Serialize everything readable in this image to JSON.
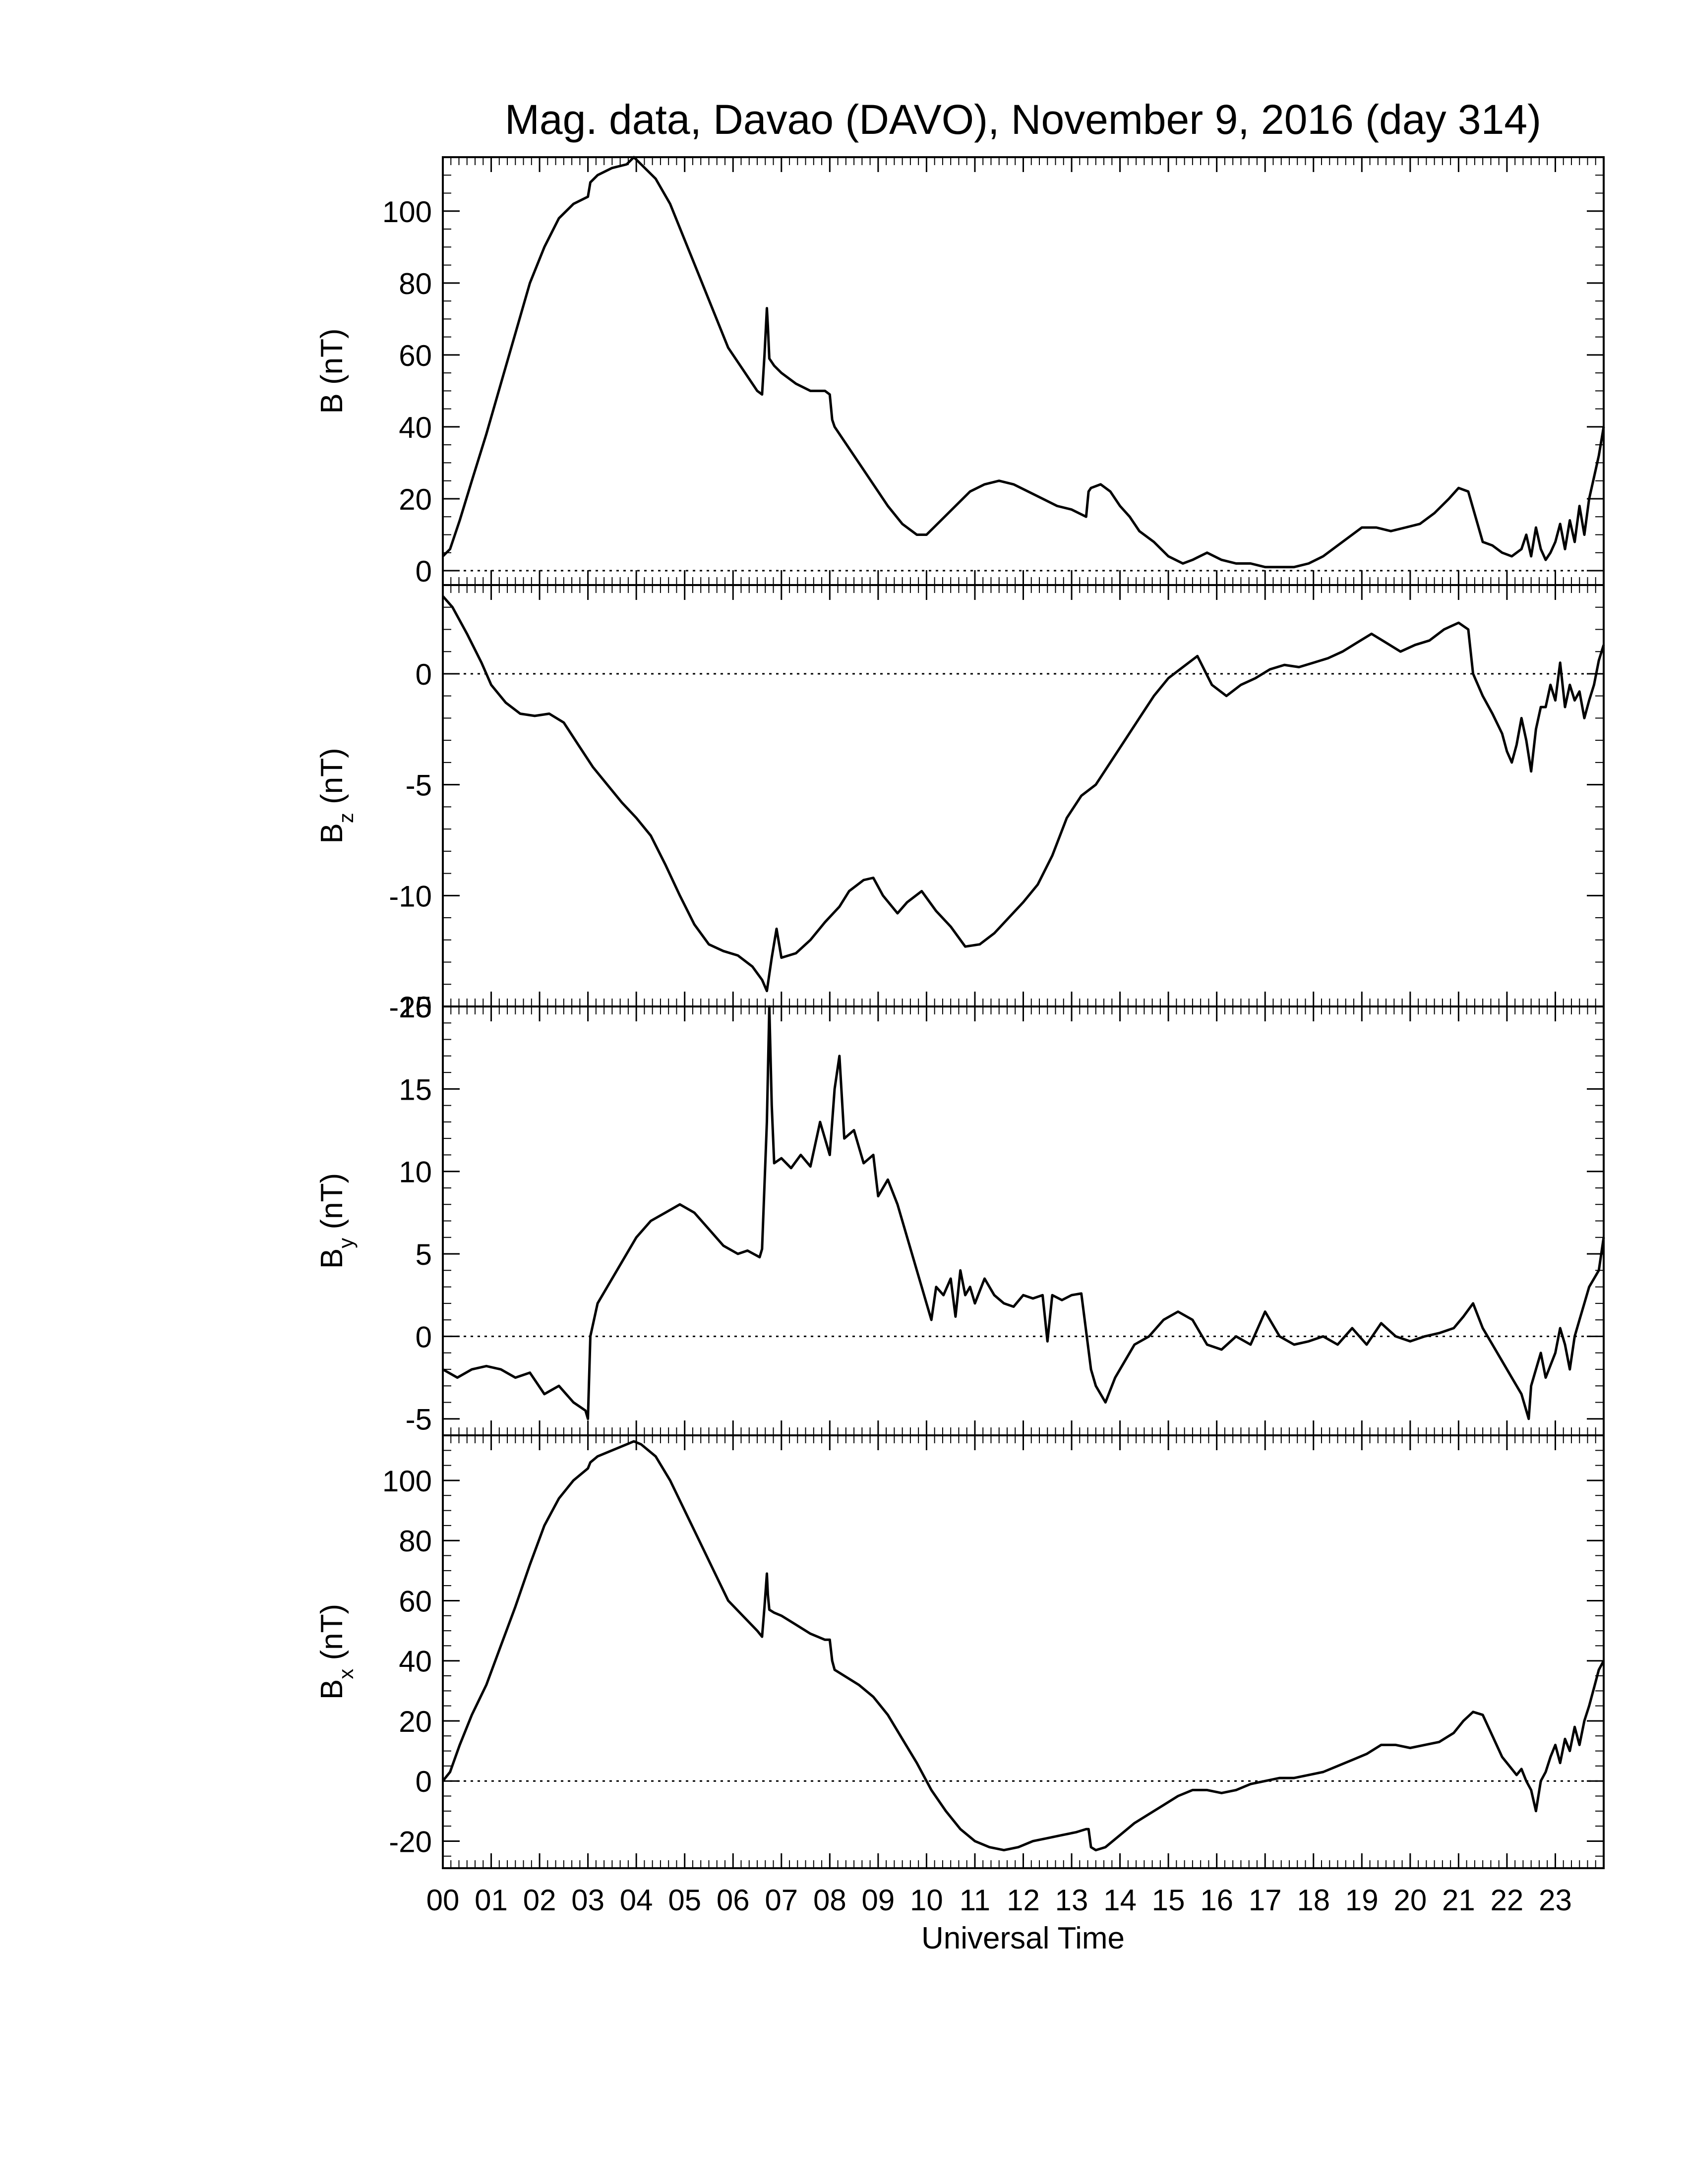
{
  "title": "Mag. data, Davao (DAVO), November 9, 2016 (day 314)",
  "xlabel": "Universal Time",
  "x_tick_labels": [
    "00",
    "01",
    "02",
    "03",
    "04",
    "05",
    "06",
    "07",
    "08",
    "09",
    "10",
    "11",
    "12",
    "13",
    "14",
    "15",
    "16",
    "17",
    "18",
    "19",
    "20",
    "21",
    "22",
    "23"
  ],
  "colors": {
    "line": "#000000",
    "axes": "#000000",
    "background": "#ffffff"
  },
  "chart_data": [
    {
      "type": "line",
      "ylabel": "B (nT)",
      "ylabel_main": "B",
      "ylabel_sub": "",
      "ylabel_unit": " (nT)",
      "ylim": [
        -4,
        115
      ],
      "yticks": [
        0,
        20,
        40,
        60,
        80,
        100
      ],
      "ytick_labels": [
        "0",
        "20",
        "40",
        "60",
        "80",
        "100"
      ],
      "xlim": [
        0,
        24
      ],
      "zero_line": true,
      "x": [
        0,
        0.15,
        0.35,
        0.6,
        0.9,
        1.2,
        1.5,
        1.8,
        2.1,
        2.4,
        2.7,
        3.0,
        3.05,
        3.2,
        3.5,
        3.8,
        3.95,
        4.1,
        4.4,
        4.7,
        5.0,
        5.3,
        5.6,
        5.9,
        6.2,
        6.5,
        6.6,
        6.65,
        6.7,
        6.72,
        6.75,
        6.85,
        7.0,
        7.3,
        7.6,
        7.9,
        8.0,
        8.05,
        8.1,
        8.3,
        8.6,
        8.9,
        9.2,
        9.5,
        9.8,
        10.0,
        10.3,
        10.6,
        10.9,
        11.2,
        11.5,
        11.8,
        12.1,
        12.4,
        12.7,
        13.0,
        13.3,
        13.35,
        13.4,
        13.6,
        13.8,
        14.0,
        14.2,
        14.4,
        14.7,
        15.0,
        15.3,
        15.5,
        15.8,
        16.1,
        16.4,
        16.7,
        17.0,
        17.3,
        17.6,
        17.9,
        18.2,
        18.5,
        18.8,
        19.0,
        19.3,
        19.6,
        19.9,
        20.2,
        20.5,
        20.8,
        21.0,
        21.2,
        21.35,
        21.5,
        21.7,
        21.9,
        22.1,
        22.3,
        22.4,
        22.5,
        22.6,
        22.7,
        22.8,
        22.9,
        23.0,
        23.1,
        23.2,
        23.3,
        23.4,
        23.5,
        23.6,
        23.7,
        23.8,
        23.9,
        24.0
      ],
      "y": [
        4,
        6,
        14,
        25,
        38,
        52,
        66,
        80,
        90,
        98,
        102,
        104,
        108,
        110,
        112,
        113,
        115,
        113,
        109,
        102,
        92,
        82,
        72,
        62,
        56,
        50,
        49,
        60,
        73,
        68,
        59,
        57,
        55,
        52,
        50,
        50,
        49,
        42,
        40,
        36,
        30,
        24,
        18,
        13,
        10,
        10,
        14,
        18,
        22,
        24,
        25,
        24,
        22,
        20,
        18,
        17,
        15,
        22,
        23,
        24,
        22,
        18,
        15,
        11,
        8,
        4,
        2,
        3,
        5,
        3,
        2,
        2,
        1,
        1,
        1,
        2,
        4,
        7,
        10,
        12,
        12,
        11,
        12,
        13,
        16,
        20,
        23,
        22,
        15,
        8,
        7,
        5,
        4,
        6,
        10,
        4,
        12,
        6,
        3,
        5,
        8,
        13,
        6,
        14,
        8,
        18,
        10,
        20,
        26,
        32,
        40
      ]
    },
    {
      "type": "line",
      "ylabel": "Bz (nT)",
      "ylabel_main": "B",
      "ylabel_sub": "z",
      "ylabel_unit": " (nT)",
      "ylim": [
        -15,
        4
      ],
      "yticks": [
        -15,
        -10,
        -5,
        0
      ],
      "ytick_labels": [
        "-15",
        "-10",
        "-5",
        "0"
      ],
      "xlim": [
        0,
        24
      ],
      "zero_line": true,
      "x": [
        0,
        0.2,
        0.5,
        0.8,
        1.0,
        1.3,
        1.6,
        1.9,
        2.2,
        2.5,
        2.8,
        3.1,
        3.4,
        3.7,
        4.0,
        4.3,
        4.6,
        4.9,
        5.2,
        5.5,
        5.8,
        6.1,
        6.4,
        6.6,
        6.7,
        6.8,
        6.9,
        7.0,
        7.3,
        7.6,
        7.9,
        8.2,
        8.4,
        8.7,
        8.9,
        9.1,
        9.4,
        9.6,
        9.9,
        10.2,
        10.5,
        10.8,
        11.1,
        11.4,
        11.7,
        12.0,
        12.3,
        12.6,
        12.9,
        13.2,
        13.5,
        13.8,
        14.1,
        14.4,
        14.7,
        15.0,
        15.3,
        15.6,
        15.9,
        16.2,
        16.5,
        16.8,
        17.1,
        17.4,
        17.7,
        18.0,
        18.3,
        18.6,
        18.9,
        19.2,
        19.5,
        19.8,
        20.1,
        20.4,
        20.7,
        21.0,
        21.2,
        21.3,
        21.5,
        21.7,
        21.9,
        22.0,
        22.1,
        22.2,
        22.3,
        22.4,
        22.5,
        22.6,
        22.7,
        22.8,
        22.9,
        23.0,
        23.1,
        23.2,
        23.3,
        23.4,
        23.5,
        23.6,
        23.7,
        23.8,
        23.9,
        24.0
      ],
      "y": [
        3.5,
        3,
        1.8,
        0.5,
        -0.5,
        -1.3,
        -1.8,
        -1.9,
        -1.8,
        -2.2,
        -3.2,
        -4.2,
        -5,
        -5.8,
        -6.5,
        -7.3,
        -8.6,
        -10,
        -11.3,
        -12.2,
        -12.5,
        -12.7,
        -13.2,
        -13.8,
        -14.3,
        -12.8,
        -11.5,
        -12.8,
        -12.6,
        -12,
        -11.2,
        -10.5,
        -9.8,
        -9.3,
        -9.2,
        -10,
        -10.8,
        -10.3,
        -9.8,
        -10.7,
        -11.4,
        -12.3,
        -12.2,
        -11.7,
        -11,
        -10.3,
        -9.5,
        -8.2,
        -6.5,
        -5.5,
        -5,
        -4,
        -3,
        -2,
        -1,
        -0.2,
        0.3,
        0.8,
        -0.5,
        -1,
        -0.5,
        -0.2,
        0.2,
        0.4,
        0.3,
        0.5,
        0.7,
        1,
        1.4,
        1.8,
        1.4,
        1,
        1.3,
        1.5,
        2,
        2.3,
        2,
        0,
        -1,
        -1.8,
        -2.7,
        -3.5,
        -4,
        -3.2,
        -2,
        -3,
        -4.4,
        -2.5,
        -1.5,
        -1.5,
        -0.5,
        -1.2,
        0.5,
        -1.5,
        -0.5,
        -1.2,
        -0.8,
        -2,
        -1.2,
        -0.5,
        0.6,
        1.3
      ]
    },
    {
      "type": "line",
      "ylabel": "By (nT)",
      "ylabel_main": "B",
      "ylabel_sub": "y",
      "ylabel_unit": " (nT)",
      "ylim": [
        -6,
        20
      ],
      "yticks": [
        -5,
        0,
        5,
        10,
        15,
        20
      ],
      "ytick_labels": [
        "-5",
        "0",
        "5",
        "10",
        "15",
        "20"
      ],
      "xlim": [
        0,
        24
      ],
      "zero_line": true,
      "x": [
        0,
        0.3,
        0.6,
        0.9,
        1.2,
        1.5,
        1.8,
        2.1,
        2.4,
        2.7,
        2.95,
        3.0,
        3.05,
        3.2,
        3.4,
        3.7,
        4.0,
        4.3,
        4.6,
        4.9,
        5.2,
        5.5,
        5.8,
        6.1,
        6.3,
        6.55,
        6.6,
        6.7,
        6.75,
        6.8,
        6.85,
        7.0,
        7.2,
        7.4,
        7.6,
        7.8,
        8.0,
        8.1,
        8.2,
        8.3,
        8.5,
        8.7,
        8.9,
        9.0,
        9.2,
        9.4,
        9.6,
        9.8,
        9.9,
        10.0,
        10.1,
        10.2,
        10.35,
        10.5,
        10.6,
        10.7,
        10.8,
        10.9,
        11.0,
        11.2,
        11.4,
        11.6,
        11.8,
        12.0,
        12.2,
        12.4,
        12.5,
        12.6,
        12.8,
        13.0,
        13.2,
        13.4,
        13.5,
        13.7,
        13.9,
        14.1,
        14.3,
        14.6,
        14.9,
        15.2,
        15.5,
        15.8,
        16.1,
        16.4,
        16.7,
        17.0,
        17.3,
        17.6,
        17.9,
        18.2,
        18.5,
        18.8,
        19.1,
        19.4,
        19.7,
        20.0,
        20.3,
        20.6,
        20.9,
        21.1,
        21.3,
        21.5,
        21.7,
        21.9,
        22.1,
        22.3,
        22.45,
        22.5,
        22.6,
        22.7,
        22.8,
        23.0,
        23.1,
        23.2,
        23.3,
        23.4,
        23.5,
        23.6,
        23.7,
        23.8,
        23.9,
        24.0
      ],
      "y": [
        -2,
        -2.5,
        -2,
        -1.8,
        -2,
        -2.5,
        -2.2,
        -3.5,
        -3,
        -4,
        -4.5,
        -5,
        0,
        2,
        3,
        4.5,
        6,
        7,
        7.5,
        8,
        7.5,
        6.5,
        5.5,
        5,
        5.2,
        4.8,
        5.3,
        13,
        20,
        14,
        10.5,
        10.8,
        10.2,
        11,
        10.3,
        13,
        11,
        15,
        17,
        12,
        12.5,
        10.5,
        11,
        8.5,
        9.5,
        8,
        6,
        4,
        3,
        2,
        1,
        3,
        2.5,
        3.5,
        1.2,
        4,
        2.5,
        3,
        2,
        3.5,
        2.5,
        2,
        1.8,
        2.5,
        2.3,
        2.5,
        -0.3,
        2.5,
        2.2,
        2.5,
        2.6,
        -2,
        -3,
        -4,
        -2.5,
        -1.5,
        -0.5,
        0,
        1,
        1.5,
        1,
        -0.5,
        -0.8,
        0,
        -0.5,
        1.5,
        0,
        -0.5,
        -0.3,
        0,
        -0.5,
        0.5,
        -0.5,
        0.8,
        0,
        -0.3,
        0,
        0.2,
        0.5,
        1.2,
        2,
        0.5,
        -0.5,
        -1.5,
        -2.5,
        -3.5,
        -5,
        -3,
        -2,
        -1,
        -2.5,
        -1,
        0.5,
        -0.5,
        -2,
        0,
        1,
        2,
        3,
        3.5,
        4,
        6
      ]
    },
    {
      "type": "line",
      "ylabel": "Bx (nT)",
      "ylabel_main": "B",
      "ylabel_sub": "x",
      "ylabel_unit": " (nT)",
      "ylim": [
        -29,
        115
      ],
      "yticks": [
        -20,
        0,
        20,
        40,
        60,
        80,
        100
      ],
      "ytick_labels": [
        "-20",
        "0",
        "20",
        "40",
        "60",
        "80",
        "100"
      ],
      "xlim": [
        0,
        24
      ],
      "zero_line": true,
      "x": [
        0,
        0.15,
        0.35,
        0.6,
        0.9,
        1.2,
        1.5,
        1.8,
        2.1,
        2.4,
        2.7,
        3.0,
        3.05,
        3.2,
        3.5,
        3.8,
        3.95,
        4.1,
        4.4,
        4.7,
        5.0,
        5.3,
        5.6,
        5.9,
        6.2,
        6.5,
        6.6,
        6.65,
        6.7,
        6.72,
        6.75,
        6.85,
        7.0,
        7.3,
        7.6,
        7.9,
        8.0,
        8.05,
        8.1,
        8.3,
        8.6,
        8.9,
        9.2,
        9.5,
        9.8,
        10.1,
        10.4,
        10.7,
        11.0,
        11.3,
        11.6,
        11.9,
        12.2,
        12.5,
        12.8,
        13.1,
        13.3,
        13.35,
        13.4,
        13.5,
        13.7,
        14.0,
        14.3,
        14.6,
        14.9,
        15.2,
        15.5,
        15.8,
        16.1,
        16.4,
        16.7,
        17.0,
        17.3,
        17.6,
        17.9,
        18.2,
        18.5,
        18.8,
        19.1,
        19.4,
        19.7,
        20.0,
        20.3,
        20.6,
        20.9,
        21.1,
        21.3,
        21.5,
        21.7,
        21.9,
        22.1,
        22.2,
        22.3,
        22.4,
        22.5,
        22.6,
        22.7,
        22.8,
        22.9,
        23.0,
        23.1,
        23.2,
        23.3,
        23.4,
        23.5,
        23.6,
        23.7,
        23.8,
        23.9,
        24.0
      ],
      "y": [
        0,
        3,
        12,
        22,
        32,
        45,
        58,
        72,
        85,
        94,
        100,
        104,
        106,
        108,
        110,
        112,
        113,
        112,
        108,
        100,
        90,
        80,
        70,
        60,
        55,
        50,
        48,
        58,
        69,
        62,
        57,
        56,
        55,
        52,
        49,
        47,
        47,
        40,
        37,
        35,
        32,
        28,
        22,
        14,
        6,
        -3,
        -10,
        -16,
        -20,
        -22,
        -23,
        -22,
        -20,
        -19,
        -18,
        -17,
        -16,
        -16,
        -22,
        -23,
        -22,
        -18,
        -14,
        -11,
        -8,
        -5,
        -3,
        -3,
        -4,
        -3,
        -1,
        0,
        1,
        1,
        2,
        3,
        5,
        7,
        9,
        12,
        12,
        11,
        12,
        13,
        16,
        20,
        23,
        22,
        15,
        8,
        4,
        2,
        4,
        0,
        -3,
        -10,
        0,
        3,
        8,
        12,
        6,
        14,
        10,
        18,
        12,
        20,
        25,
        31,
        37,
        40
      ]
    }
  ]
}
